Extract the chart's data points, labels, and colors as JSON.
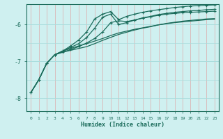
{
  "xlabel": "Humidex (Indice chaleur)",
  "xlim": [
    -0.5,
    23.5
  ],
  "ylim": [
    -8.35,
    -5.45
  ],
  "yticks": [
    -8,
    -7,
    -6
  ],
  "xticks": [
    0,
    1,
    2,
    3,
    4,
    5,
    6,
    7,
    8,
    9,
    10,
    11,
    12,
    13,
    14,
    15,
    16,
    17,
    18,
    19,
    20,
    21,
    22,
    23
  ],
  "bg_color": "#cff0f0",
  "line_color": "#1a6b5a",
  "grid_major_color": "#aadddd",
  "grid_minor_color": "#c8eeee",
  "line1_x": [
    0,
    1,
    2,
    3,
    4,
    5,
    6,
    7,
    8,
    9,
    10,
    11,
    12,
    13,
    14,
    15,
    16,
    17,
    18,
    19,
    20,
    21,
    22,
    23
  ],
  "line1_y": [
    -7.85,
    -7.5,
    -7.05,
    -6.82,
    -6.72,
    -6.65,
    -6.58,
    -6.52,
    -6.45,
    -6.38,
    -6.3,
    -6.23,
    -6.18,
    -6.13,
    -6.09,
    -6.05,
    -6.01,
    -5.98,
    -5.95,
    -5.93,
    -5.91,
    -5.89,
    -5.87,
    -5.86
  ],
  "line2_x": [
    0,
    1,
    2,
    3,
    4,
    5,
    6,
    7,
    8,
    9,
    10,
    11,
    12,
    13,
    14,
    15,
    16,
    17,
    18,
    19,
    20,
    21,
    22,
    23
  ],
  "line2_y": [
    -7.85,
    -7.5,
    -7.05,
    -6.82,
    -6.75,
    -6.7,
    -6.65,
    -6.6,
    -6.52,
    -6.43,
    -6.35,
    -6.27,
    -6.21,
    -6.15,
    -6.1,
    -6.06,
    -6.01,
    -5.97,
    -5.94,
    -5.91,
    -5.89,
    -5.87,
    -5.85,
    -5.84
  ],
  "line3_x": [
    0,
    1,
    2,
    3,
    4,
    5,
    6,
    7,
    8,
    9,
    10,
    11,
    12,
    13,
    14,
    15,
    16,
    17,
    18,
    19,
    20,
    21,
    22,
    23
  ],
  "line3_y": [
    -7.85,
    -7.5,
    -7.05,
    -6.82,
    -6.75,
    -6.68,
    -6.6,
    -6.5,
    -6.38,
    -6.2,
    -5.95,
    -5.9,
    -5.92,
    -5.88,
    -5.83,
    -5.79,
    -5.75,
    -5.72,
    -5.7,
    -5.68,
    -5.67,
    -5.66,
    -5.65,
    -5.64
  ],
  "line4_x": [
    3,
    4,
    5,
    6,
    7,
    8,
    9,
    10,
    11,
    12,
    13,
    14,
    15,
    16,
    17,
    18,
    19,
    20,
    21,
    22,
    23
  ],
  "line4_y": [
    -6.82,
    -6.72,
    -6.58,
    -6.42,
    -6.2,
    -5.85,
    -5.72,
    -5.65,
    -5.87,
    -5.78,
    -5.72,
    -5.67,
    -5.63,
    -5.6,
    -5.57,
    -5.54,
    -5.52,
    -5.5,
    -5.49,
    -5.48,
    -5.47
  ],
  "line5_x": [
    0,
    1,
    2,
    3,
    4,
    5,
    6,
    7,
    8,
    9,
    10,
    11,
    12,
    13,
    14,
    15,
    16,
    17,
    18,
    19,
    20,
    21,
    22,
    23
  ],
  "line5_y": [
    -7.85,
    -7.5,
    -7.05,
    -6.82,
    -6.72,
    -6.62,
    -6.52,
    -6.35,
    -6.1,
    -5.8,
    -5.72,
    -6.0,
    -5.95,
    -5.88,
    -5.82,
    -5.78,
    -5.73,
    -5.7,
    -5.67,
    -5.65,
    -5.63,
    -5.62,
    -5.6,
    -5.59
  ]
}
